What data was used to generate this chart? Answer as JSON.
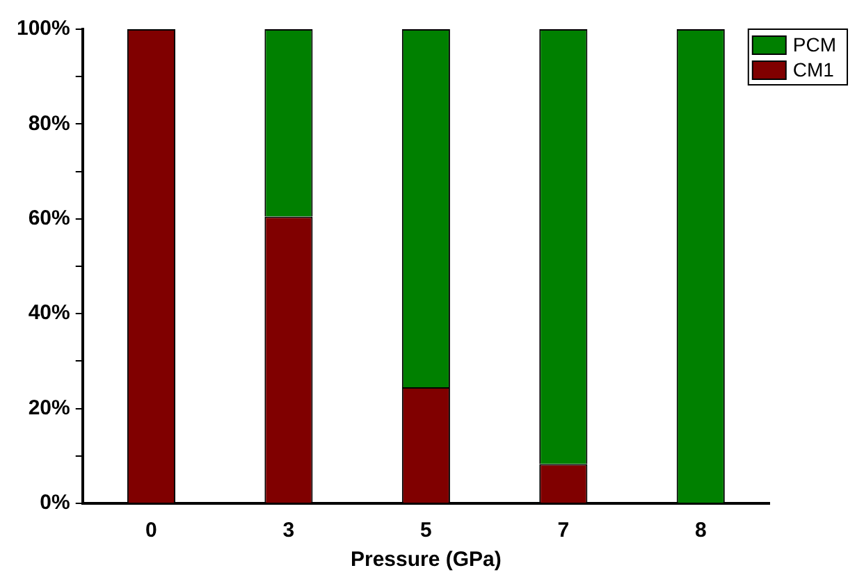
{
  "chart_data": {
    "type": "bar",
    "xlabel": "Pressure (GPa)",
    "categories": [
      "0",
      "3",
      "5",
      "7",
      "8"
    ],
    "stacked": true,
    "legend": "top right",
    "grid": false,
    "ylim": [
      0,
      100
    ],
    "yticks": [
      {
        "value": 0,
        "label": "0%"
      },
      {
        "value": 10,
        "label": null
      },
      {
        "value": 20,
        "label": "20%"
      },
      {
        "value": 30,
        "label": null
      },
      {
        "value": 40,
        "label": "40%"
      },
      {
        "value": 50,
        "label": null
      },
      {
        "value": 60,
        "label": "60%"
      },
      {
        "value": 70,
        "label": null
      },
      {
        "value": 80,
        "label": "80%"
      },
      {
        "value": 90,
        "label": null
      },
      {
        "value": 100,
        "label": "100%"
      }
    ],
    "series": [
      {
        "name": "CM1",
        "color": "#800000",
        "values": [
          100,
          60.5,
          24.5,
          8.3,
          0
        ]
      },
      {
        "name": "PCM",
        "color": "#008000",
        "values": [
          0,
          39.5,
          75.5,
          91.7,
          100
        ]
      }
    ]
  }
}
